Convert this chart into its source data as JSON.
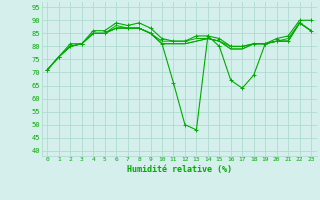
{
  "xlabel": "Humidité relative (%)",
  "xlim": [
    -0.5,
    23.5
  ],
  "ylim": [
    38,
    97
  ],
  "yticks": [
    40,
    45,
    50,
    55,
    60,
    65,
    70,
    75,
    80,
    85,
    90,
    95
  ],
  "xticks": [
    0,
    1,
    2,
    3,
    4,
    5,
    6,
    7,
    8,
    9,
    10,
    11,
    12,
    13,
    14,
    15,
    16,
    17,
    18,
    19,
    20,
    21,
    22,
    23
  ],
  "background_color": "#d5f0ec",
  "grid_color": "#a8d8cc",
  "line_color": "#00aa00",
  "series_plain": [
    [
      71,
      76,
      80,
      81,
      85,
      85,
      88,
      87,
      87,
      85,
      82,
      82,
      82,
      83,
      83,
      82,
      80,
      80,
      81,
      81,
      82,
      83,
      89,
      86
    ],
    [
      71,
      76,
      80,
      81,
      85,
      85,
      87,
      87,
      87,
      85,
      81,
      81,
      81,
      82,
      83,
      82,
      79,
      79,
      81,
      81,
      82,
      82,
      89,
      86
    ],
    [
      71,
      76,
      80,
      81,
      85,
      85,
      87,
      87,
      87,
      85,
      81,
      81,
      81,
      82,
      83,
      82,
      79,
      79,
      81,
      81,
      82,
      82,
      89,
      86
    ]
  ],
  "series_marked_top": [
    71,
    76,
    81,
    81,
    86,
    86,
    89,
    88,
    89,
    87,
    83,
    82,
    82,
    84,
    84,
    83,
    80,
    80,
    81,
    81,
    83,
    84,
    90,
    90
  ],
  "series_dip": [
    71,
    76,
    80,
    81,
    85,
    85,
    87,
    87,
    87,
    85,
    81,
    66,
    50,
    48,
    84,
    80,
    67,
    64,
    69,
    81,
    82,
    82,
    89,
    86
  ]
}
